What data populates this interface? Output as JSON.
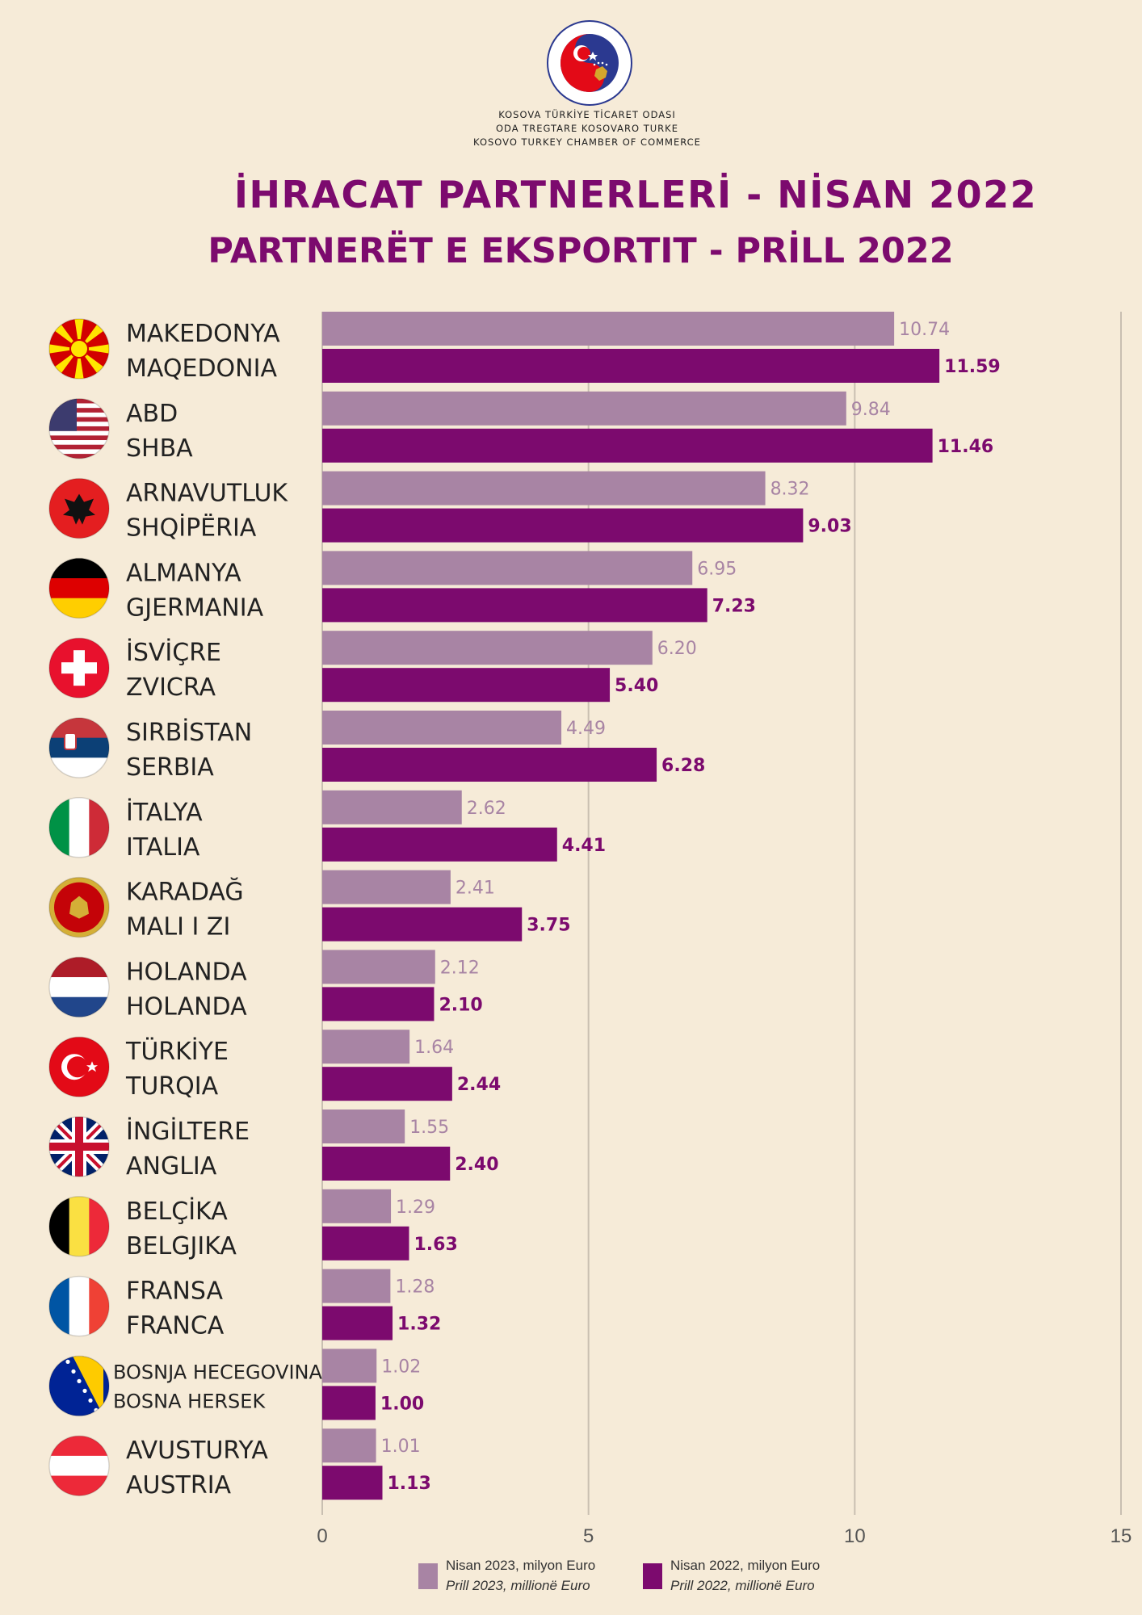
{
  "header": {
    "org_lines": [
      "KOSOVA TÜRKİYE TİCARET ODASI",
      "ODA TREGTARE KOSOVARO TURKE",
      "KOSOVO TURKEY CHAMBER OF COMMERCE"
    ],
    "title_tr": "İHRACAT PARTNERLERİ - NİSAN 2022",
    "title_sq": "PARTNERËT E EKSPORTIT - PRİLL 2022"
  },
  "colors": {
    "background": "#f6ebd8",
    "series_2023": "#a884a4",
    "series_2022": "#7c0a6e",
    "title": "#7c0a6e",
    "grid": "#c9bfb1"
  },
  "chart_data": {
    "type": "bar",
    "orientation": "horizontal",
    "categories": [
      {
        "tr": "MAKEDONYA",
        "sq": "MAQEDONIA",
        "flag": "north-macedonia-flag"
      },
      {
        "tr": "ABD",
        "sq": "SHBA",
        "flag": "usa-flag"
      },
      {
        "tr": "ARNAVUTLUK",
        "sq": "SHQİPËRIA",
        "flag": "albania-flag"
      },
      {
        "tr": "ALMANYA",
        "sq": "GJERMANIA",
        "flag": "germany-flag"
      },
      {
        "tr": "İSVİÇRE",
        "sq": "ZVICRA",
        "flag": "switzerland-flag"
      },
      {
        "tr": "SIRBİSTAN",
        "sq": "SERBIA",
        "flag": "serbia-flag"
      },
      {
        "tr": "İTALYA",
        "sq": "ITALIA",
        "flag": "italy-flag"
      },
      {
        "tr": "KARADAĞ",
        "sq": "MALI I ZI",
        "flag": "montenegro-flag"
      },
      {
        "tr": "HOLANDA",
        "sq": "HOLANDA",
        "flag": "netherlands-flag"
      },
      {
        "tr": "TÜRKİYE",
        "sq": "TURQIA",
        "flag": "turkey-flag"
      },
      {
        "tr": "İNGİLTERE",
        "sq": "ANGLIA",
        "flag": "uk-flag"
      },
      {
        "tr": "BELÇİKA",
        "sq": "BELGJIKA",
        "flag": "belgium-flag"
      },
      {
        "tr": "FRANSA",
        "sq": "FRANCA",
        "flag": "france-flag"
      },
      {
        "tr": "BOSNJA HECEGOVINA",
        "sq": "BOSNA HERSEK",
        "flag": "bosnia-flag"
      },
      {
        "tr": "AVUSTURYA",
        "sq": "AUSTRIA",
        "flag": "austria-flag"
      }
    ],
    "series": [
      {
        "name": "Nisan 2023, milyon Euro",
        "name_sq": "Prill 2023, millionë Euro",
        "values": [
          10.74,
          9.84,
          8.32,
          6.95,
          6.2,
          4.49,
          2.62,
          2.41,
          2.12,
          1.64,
          1.55,
          1.29,
          1.28,
          1.02,
          1.01
        ]
      },
      {
        "name": "Nisan 2022, milyon Euro",
        "name_sq": "Prill 2022, millionë Euro",
        "values": [
          11.59,
          11.46,
          9.03,
          7.23,
          5.4,
          6.28,
          4.41,
          3.75,
          2.1,
          2.44,
          2.4,
          1.63,
          1.32,
          1.0,
          1.13
        ]
      }
    ],
    "xlim": [
      0,
      15
    ],
    "xticks": [
      "0",
      "5",
      "10",
      "15"
    ],
    "grid": true,
    "legend_position": "bottom"
  }
}
